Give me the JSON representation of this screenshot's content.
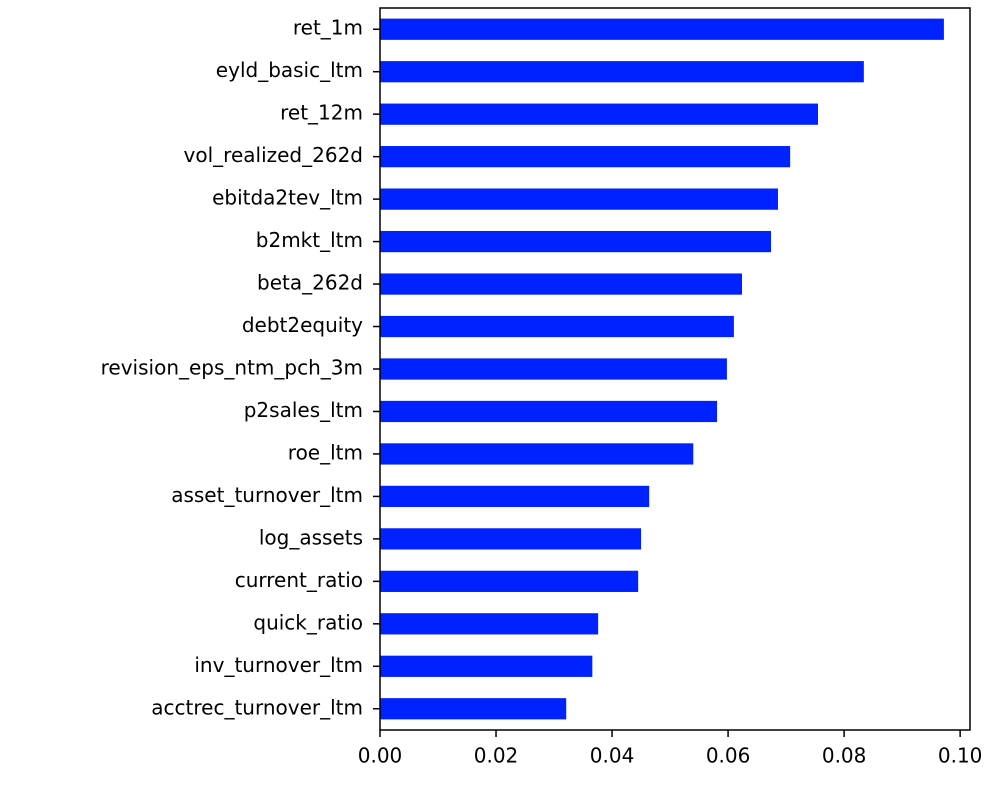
{
  "chart_data": {
    "type": "barh",
    "categories": [
      "ret_1m",
      "eyld_basic_ltm",
      "ret_12m",
      "vol_realized_262d",
      "ebitda2tev_ltm",
      "b2mkt_ltm",
      "beta_262d",
      "debt2equity",
      "revision_eps_ntm_pch_3m",
      "p2sales_ltm",
      "roe_ltm",
      "asset_turnover_ltm",
      "log_assets",
      "current_ratio",
      "quick_ratio",
      "inv_turnover_ltm",
      "acctrec_turnover_ltm"
    ],
    "values": [
      0.0972,
      0.0834,
      0.0755,
      0.0707,
      0.0686,
      0.0674,
      0.0624,
      0.061,
      0.0598,
      0.0581,
      0.054,
      0.0464,
      0.045,
      0.0445,
      0.0376,
      0.0366,
      0.0321
    ],
    "color": "#0022ff",
    "xlim": [
      0,
      0.1017
    ],
    "xticks": [
      {
        "value": 0,
        "label": "0.00"
      },
      {
        "value": 0.02,
        "label": "0.02"
      },
      {
        "value": 0.04,
        "label": "0.04"
      },
      {
        "value": 0.06,
        "label": "0.06"
      },
      {
        "value": 0.08,
        "label": "0.08"
      },
      {
        "value": 0.1,
        "label": "0.10"
      }
    ]
  }
}
